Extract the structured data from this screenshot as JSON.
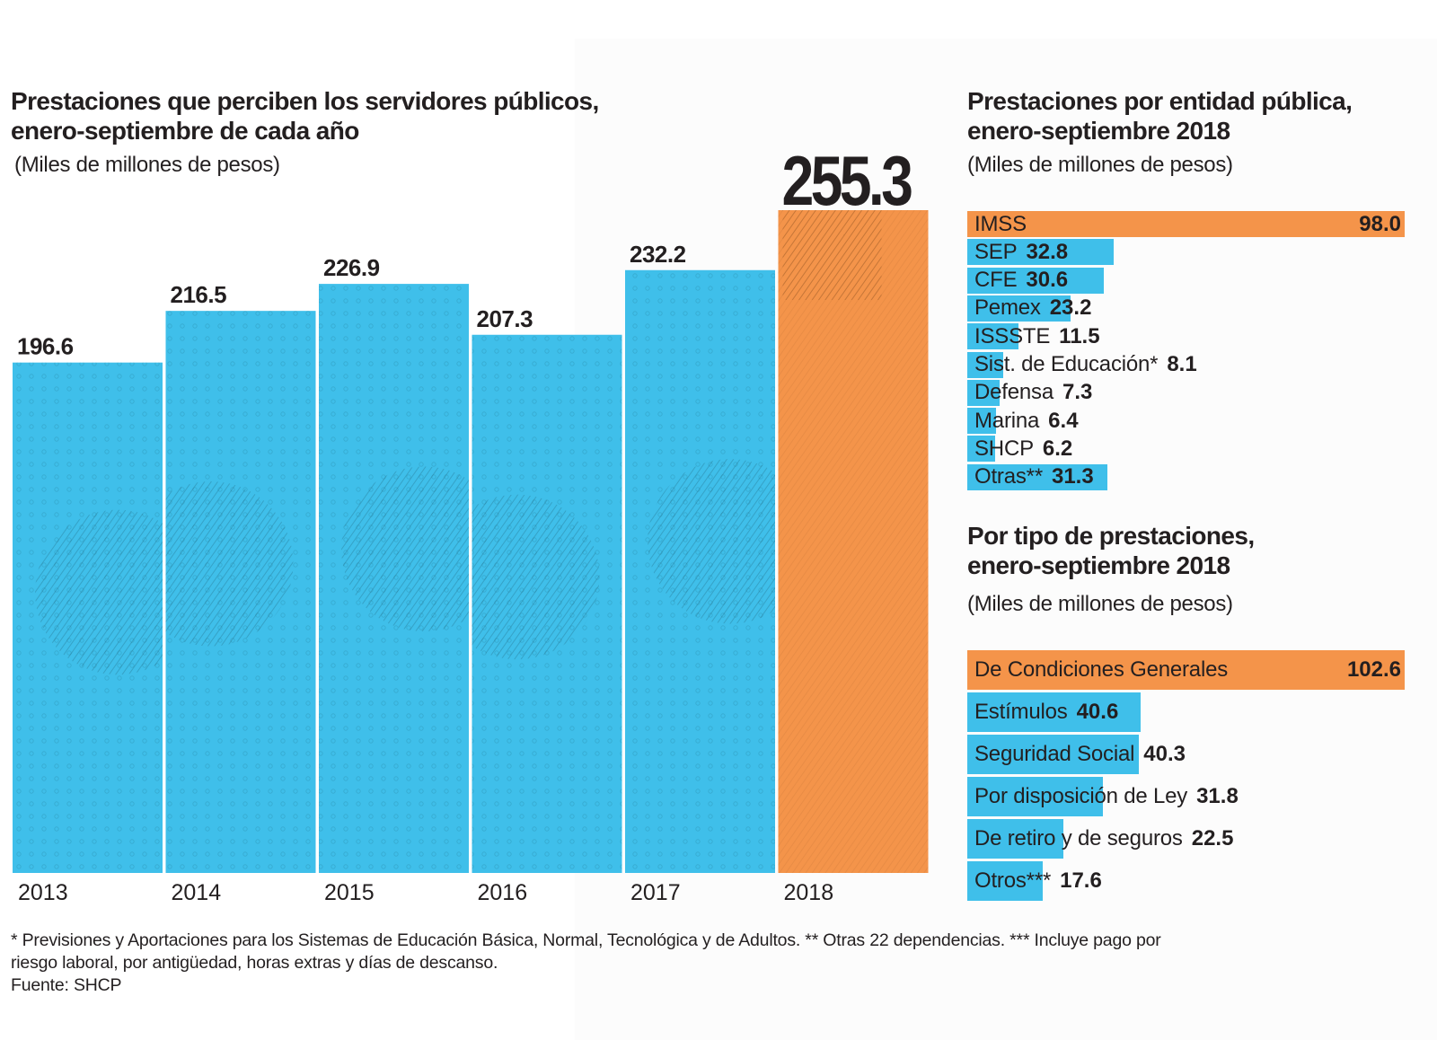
{
  "colors": {
    "highlight": "#f4944a",
    "bar": "#3fbfea",
    "text": "#231f20",
    "bar_dark_texture": "#1e6f88"
  },
  "left": {
    "title_line1": "Prestaciones que perciben los servidores públicos,",
    "title_line2": "enero-septiembre de cada año",
    "subtitle": "(Miles de millones de pesos)"
  },
  "entity": {
    "title_line1": "Prestaciones por entidad pública,",
    "title_line2": "enero-septiembre 2018",
    "subtitle": "(Miles de millones de pesos)"
  },
  "type": {
    "title_line1": "Por tipo de prestaciones,",
    "title_line2": "enero-septiembre 2018",
    "subtitle": "(Miles de millones de pesos)"
  },
  "footnote": {
    "line1": "*  Previsiones y Aportaciones para los Sistemas de Educación Básica, Normal, Tecnológica y de Adultos. ** Otras 22 dependencias. *** Incluye pago por",
    "line2": "riesgo laboral, por antigüedad, horas extras y días de descanso.",
    "source": "Fuente: SHCP"
  },
  "chart_data": [
    {
      "type": "bar",
      "title": "Prestaciones que perciben los servidores públicos, enero-septiembre de cada año",
      "subtitle": "(Miles de millones de pesos)",
      "xlabel": "",
      "ylabel": "Miles de millones de pesos",
      "categories": [
        "2013",
        "2014",
        "2015",
        "2016",
        "2017",
        "2018"
      ],
      "values": [
        196.6,
        216.5,
        226.9,
        207.3,
        232.2,
        255.3
      ],
      "labels": [
        "196.6",
        "216.5",
        "226.9",
        "207.3",
        "232.2",
        "255.3"
      ],
      "highlight_index": 5,
      "ylim": [
        0,
        255.3
      ],
      "grid": false
    },
    {
      "type": "bar",
      "orientation": "horizontal",
      "title": "Prestaciones por entidad pública, enero-septiembre 2018",
      "subtitle": "(Miles de millones de pesos)",
      "categories": [
        "IMSS",
        "SEP",
        "CFE",
        "Pemex",
        "ISSSTE",
        "Sist. de Educación*",
        "Defensa",
        "Marina",
        "SHCP",
        "Otras**"
      ],
      "values": [
        98.0,
        32.8,
        30.6,
        23.2,
        11.5,
        8.1,
        7.3,
        6.4,
        6.2,
        31.3
      ],
      "labels": [
        "98.0",
        "32.8",
        "30.6",
        "23.2",
        "11.5",
        "8.1",
        "7.3",
        "6.4",
        "6.2",
        "31.3"
      ],
      "highlight_index": 0,
      "xlim": [
        0,
        98.0
      ]
    },
    {
      "type": "bar",
      "orientation": "horizontal",
      "title": "Por tipo de prestaciones, enero-septiembre 2018",
      "subtitle": "(Miles de millones de pesos)",
      "categories": [
        "De Condiciones Generales",
        "Estímulos",
        "Seguridad Social",
        "Por disposición de Ley",
        "De retiro y de seguros",
        "Otros***"
      ],
      "values": [
        102.6,
        40.6,
        40.3,
        31.8,
        22.5,
        17.6
      ],
      "labels": [
        "102.6",
        "40.6",
        "40.3",
        "31.8",
        "22.5",
        "17.6"
      ],
      "highlight_index": 0,
      "xlim": [
        0,
        102.6
      ]
    }
  ]
}
